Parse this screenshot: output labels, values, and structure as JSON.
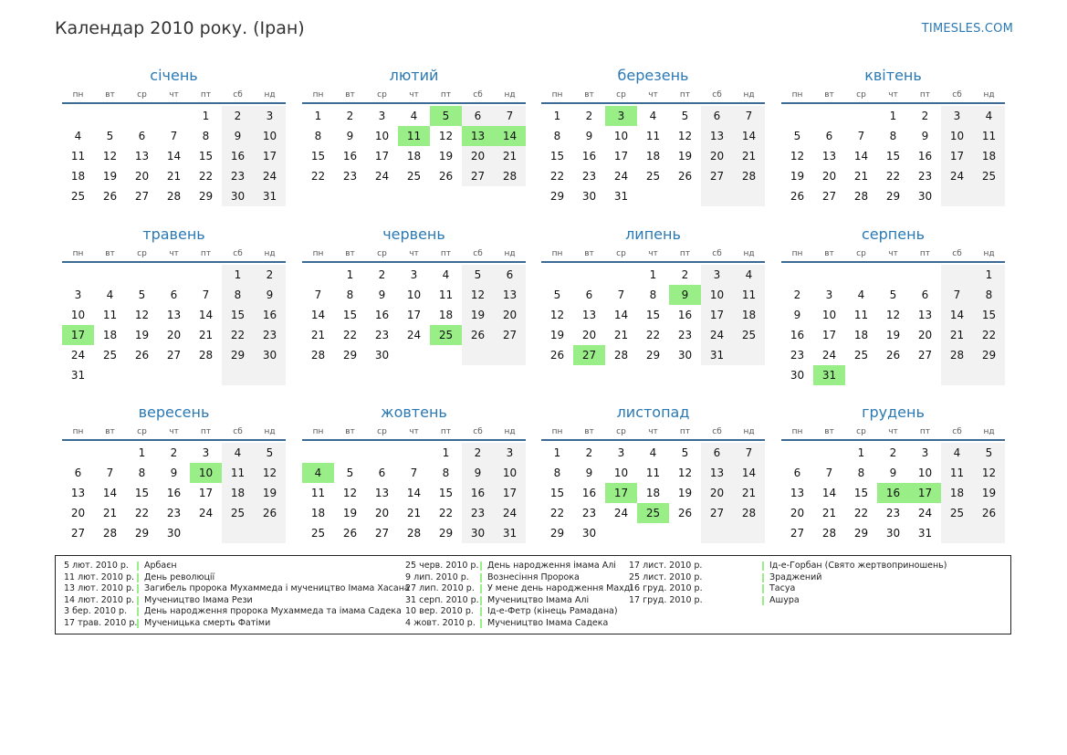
{
  "header": {
    "title": "Календар 2010 року. (Іран)",
    "brand": "TIMESLES.COM"
  },
  "weekdays": [
    "пн",
    "вт",
    "ср",
    "чт",
    "пт",
    "сб",
    "нд"
  ],
  "colors": {
    "accent": "#2a79b4",
    "holiday": "#99ee88",
    "weekend": "#f2f2f2",
    "rule": "#3b6a94"
  },
  "months": [
    {
      "name": "січень",
      "start": 4,
      "days": 31,
      "holidays": []
    },
    {
      "name": "лютий",
      "start": 0,
      "days": 28,
      "holidays": [
        5,
        11,
        13,
        14
      ]
    },
    {
      "name": "березень",
      "start": 0,
      "days": 31,
      "holidays": [
        3
      ]
    },
    {
      "name": "квітень",
      "start": 3,
      "days": 30,
      "holidays": []
    },
    {
      "name": "травень",
      "start": 5,
      "days": 31,
      "holidays": [
        17
      ]
    },
    {
      "name": "червень",
      "start": 1,
      "days": 30,
      "holidays": [
        25
      ]
    },
    {
      "name": "липень",
      "start": 3,
      "days": 31,
      "holidays": [
        9,
        27
      ]
    },
    {
      "name": "серпень",
      "start": 6,
      "days": 31,
      "holidays": [
        31
      ]
    },
    {
      "name": "вересень",
      "start": 2,
      "days": 30,
      "holidays": [
        10
      ]
    },
    {
      "name": "жовтень",
      "start": 4,
      "days": 31,
      "holidays": [
        4
      ]
    },
    {
      "name": "листопад",
      "start": 0,
      "days": 30,
      "holidays": [
        17,
        25
      ]
    },
    {
      "name": "грудень",
      "start": 2,
      "days": 31,
      "holidays": [
        16,
        17
      ]
    }
  ],
  "legend": [
    [
      {
        "date": "5 лют. 2010 р.",
        "name": "Арбаєн"
      },
      {
        "date": "11 лют. 2010 р.",
        "name": "День революції"
      },
      {
        "date": "13 лют. 2010 р.",
        "name": "Загибель пророка Мухаммеда і мучеництво Імама Хасана"
      },
      {
        "date": "14 лют. 2010 р.",
        "name": "Мучеництво Імама Рези"
      },
      {
        "date": "3 бер. 2010 р.",
        "name": "День народження пророка Мухаммеда та імама Садека"
      },
      {
        "date": "17 трав. 2010 р.",
        "name": "Мученицька смерть Фатіми"
      }
    ],
    [
      {
        "date": "25 черв. 2010 р.",
        "name": "День народження імама Алі"
      },
      {
        "date": "9 лип. 2010 р.",
        "name": "Вознесіння Пророка"
      },
      {
        "date": "27 лип. 2010 р.",
        "name": "У мене день народження Махді"
      },
      {
        "date": "31 серп. 2010 р.",
        "name": "Мучеництво Імама Алі"
      },
      {
        "date": "10 вер. 2010 р.",
        "name": "Ід-е-Фетр (кінець Рамадана)"
      },
      {
        "date": "4 жовт. 2010 р.",
        "name": "Мучеництво Імама Садека"
      }
    ],
    [
      {
        "date": "17 лист. 2010 р.",
        "name": "Ід-е-Горбан (Свято жертвоприношень)"
      },
      {
        "date": "25 лист. 2010 р.",
        "name": "Зраджений"
      },
      {
        "date": "16 груд. 2010 р.",
        "name": "Тасуа"
      },
      {
        "date": "17 груд. 2010 р.",
        "name": "Ашура"
      }
    ]
  ]
}
